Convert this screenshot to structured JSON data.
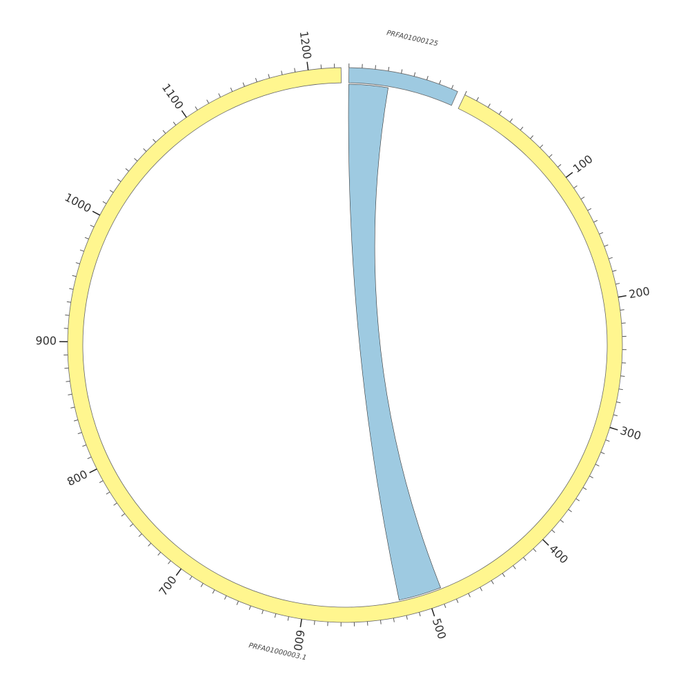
{
  "chart_data": {
    "type": "chord",
    "segments": [
      {
        "name": "PRFA01000125",
        "length": 85,
        "color": "#9ecae1"
      },
      {
        "name": "PRFA01000003.1",
        "length": 1225,
        "color": "#fff68f",
        "ticks": [
          100,
          200,
          300,
          400,
          500,
          600,
          700,
          800,
          900,
          1000,
          1100,
          1200
        ]
      }
    ],
    "minor_tick_step": 10,
    "links": [
      {
        "source": 0,
        "source_range": [
          0,
          32
        ],
        "target": 1,
        "target_range": [
          523,
          488
        ],
        "color": "#9ecae1"
      }
    ]
  }
}
